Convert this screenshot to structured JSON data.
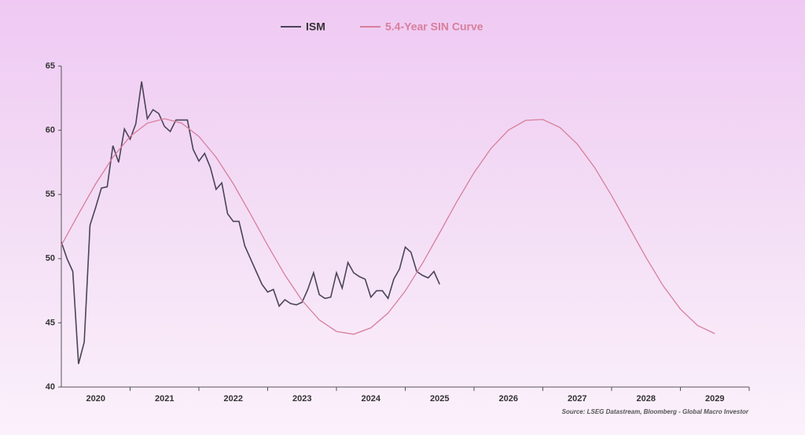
{
  "chart_data": {
    "type": "line",
    "source": "Source: LSEG Datastream, Bloomberg - Global Macro Investor",
    "legend": "top",
    "grid": false,
    "xlim": [
      2020,
      2030
    ],
    "xticks": [
      {
        "value": 2020.5,
        "label": "2020"
      },
      {
        "value": 2021.5,
        "label": "2021"
      },
      {
        "value": 2022.5,
        "label": "2022"
      },
      {
        "value": 2023.5,
        "label": "2023"
      },
      {
        "value": 2024.5,
        "label": "2024"
      },
      {
        "value": 2025.5,
        "label": "2025"
      },
      {
        "value": 2026.5,
        "label": "2026"
      },
      {
        "value": 2027.5,
        "label": "2027"
      },
      {
        "value": 2028.5,
        "label": "2028"
      },
      {
        "value": 2029.5,
        "label": "2029"
      }
    ],
    "ylim": [
      40,
      65
    ],
    "yticks": [
      40,
      45,
      50,
      55,
      60,
      65
    ],
    "series": [
      {
        "name": "ISM",
        "color": "#4a4458",
        "x": [
          2020,
          2020.083,
          2020.167,
          2020.25,
          2020.333,
          2020.417,
          2020.5,
          2020.583,
          2020.667,
          2020.75,
          2020.833,
          2020.917,
          2021,
          2021.083,
          2021.167,
          2021.25,
          2021.333,
          2021.417,
          2021.5,
          2021.583,
          2021.667,
          2021.75,
          2021.833,
          2021.917,
          2022,
          2022.083,
          2022.167,
          2022.25,
          2022.333,
          2022.417,
          2022.5,
          2022.583,
          2022.667,
          2022.75,
          2022.833,
          2022.917,
          2023,
          2023.083,
          2023.167,
          2023.25,
          2023.333,
          2023.417,
          2023.5,
          2023.583,
          2023.667,
          2023.75,
          2023.833,
          2023.917,
          2024,
          2024.083,
          2024.167,
          2024.25,
          2024.333,
          2024.417,
          2024.5,
          2024.583,
          2024.667,
          2024.75,
          2024.833,
          2024.917,
          2025,
          2025.083,
          2025.167,
          2025.25,
          2025.333,
          2025.417,
          2025.5
        ],
        "values": [
          51.3,
          50.0,
          49.0,
          41.8,
          43.5,
          52.6,
          54.0,
          55.5,
          55.6,
          58.8,
          57.5,
          60.1,
          59.3,
          60.5,
          63.8,
          60.9,
          61.6,
          61.3,
          60.3,
          59.9,
          60.8,
          60.8,
          60.8,
          58.5,
          57.6,
          58.2,
          57.1,
          55.4,
          55.9,
          53.5,
          52.9,
          52.9,
          51.0,
          50.0,
          49.0,
          48.0,
          47.4,
          47.6,
          46.3,
          46.8,
          46.5,
          46.4,
          46.6,
          47.6,
          48.9,
          47.2,
          46.9,
          47.0,
          48.9,
          47.7,
          49.7,
          48.9,
          48.6,
          48.4,
          47.0,
          47.5,
          47.5,
          46.9,
          48.4,
          49.2,
          50.9,
          50.5,
          49.0,
          48.7,
          48.5,
          49.0,
          48.0
        ]
      },
      {
        "name": "5.4-Year SIN Curve",
        "color": "#d77f9c",
        "x": [
          2020,
          2020.25,
          2020.5,
          2020.75,
          2021,
          2021.25,
          2021.5,
          2021.75,
          2022,
          2022.25,
          2022.5,
          2022.75,
          2023,
          2023.25,
          2023.5,
          2023.75,
          2024,
          2024.25,
          2024.5,
          2024.75,
          2025,
          2025.25,
          2025.5,
          2025.75,
          2026,
          2026.25,
          2026.5,
          2026.75,
          2027,
          2027.25,
          2027.5,
          2027.75,
          2028,
          2028.25,
          2028.5,
          2028.75,
          2029,
          2029.25,
          2029.5
        ],
        "values": [
          51.04,
          53.48,
          55.83,
          57.9,
          59.52,
          60.55,
          60.9,
          60.55,
          59.52,
          57.9,
          55.83,
          53.48,
          51.04,
          48.73,
          46.74,
          45.23,
          44.33,
          44.11,
          44.61,
          45.76,
          47.48,
          49.63,
          52.01,
          54.44,
          56.7,
          58.61,
          60.01,
          60.77,
          60.84,
          60.21,
          58.93,
          57.12,
          54.91,
          52.5,
          50.09,
          47.88,
          46.07,
          44.79,
          44.16
        ]
      }
    ]
  }
}
